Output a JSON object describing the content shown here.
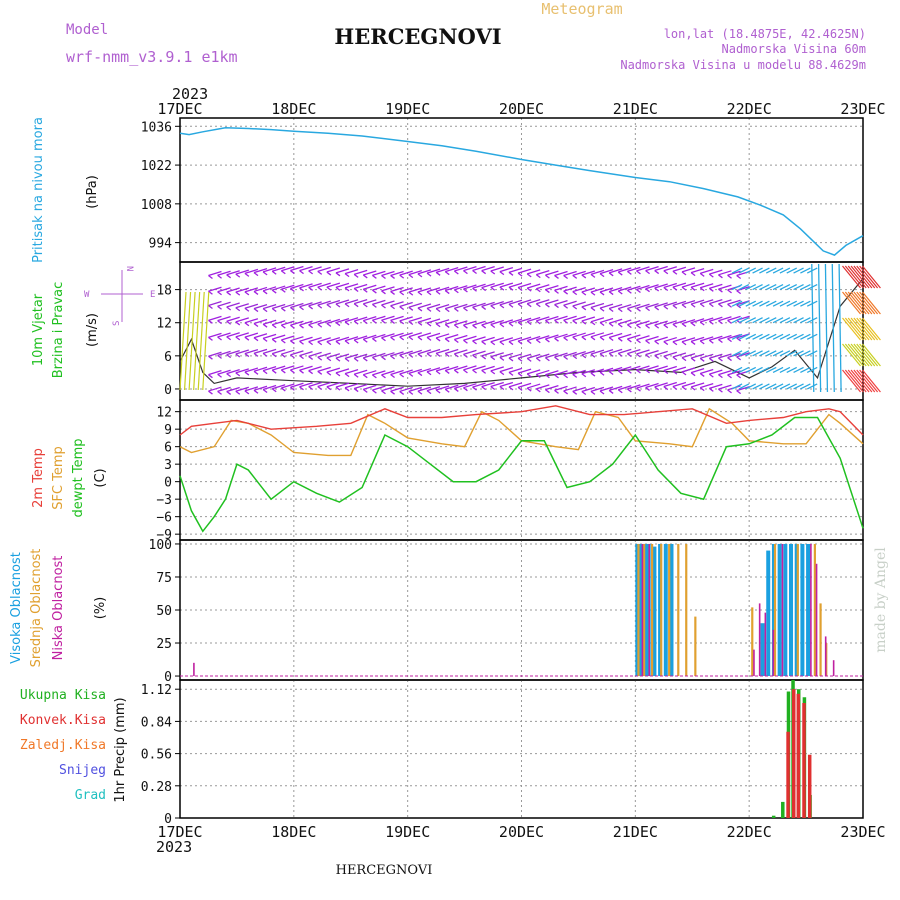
{
  "header": {
    "model_label": "Model",
    "model_name": "wrf-nmm_v3.9.1 e1km",
    "station": "HERCEGNOVI",
    "meteogram_label": "Meteogram",
    "lonlat": "lon,lat (18.4875E, 42.4625N)",
    "elevation": "Nadmorska Visina 60m",
    "model_elevation": "Nadmorska Visina u modelu 88.4629m"
  },
  "footer": {
    "station": "HERCEGNOVI",
    "credit": "made by Angel"
  },
  "time_axis": {
    "year": "2023",
    "labels": [
      "17DEC",
      "18DEC",
      "19DEC",
      "20DEC",
      "21DEC",
      "22DEC",
      "23DEC"
    ]
  },
  "colors": {
    "pressure": "#29a8e0",
    "temp2m": "#e8403a",
    "sfc_temp": "#e0a030",
    "dewpt": "#20c020",
    "high_cloud": "#1aa0e0",
    "mid_cloud": "#e0a030",
    "low_cloud": "#c020a0",
    "total_precip": "#20b020",
    "conv_precip": "#e03030",
    "freezing": "#f07828",
    "snow": "#5050e0",
    "hail": "#20c0c0",
    "wind": "#a020e0",
    "label_purple": "#b060d0",
    "label_orange": "#e8c070"
  },
  "chart_data": [
    {
      "type": "line",
      "ylabel_text": "Pritisak na nivou mora",
      "units": "(hPa)",
      "ylim": [
        987,
        1039
      ],
      "yticks": [
        994,
        1008,
        1022,
        1036
      ],
      "grid": true,
      "series": [
        {
          "name": "Pritisak na nivou mora",
          "x": [
            0,
            0.08,
            0.2,
            0.4,
            0.6,
            0.8,
            1.0,
            1.3,
            1.6,
            2.0,
            2.3,
            2.6,
            3.0,
            3.3,
            3.6,
            4.0,
            4.3,
            4.6,
            4.9,
            5.1,
            5.3,
            5.45,
            5.55,
            5.65,
            5.75,
            5.85,
            6.0
          ],
          "values": [
            1033.5,
            1033.0,
            1034,
            1035.5,
            1035.2,
            1034.8,
            1034.2,
            1033.5,
            1032.5,
            1030.5,
            1029,
            1027,
            1024,
            1022,
            1020,
            1017.5,
            1016,
            1013.5,
            1010.5,
            1007.5,
            1004,
            999,
            995,
            991,
            989.5,
            993,
            996.5
          ]
        }
      ]
    },
    {
      "type": "line",
      "ylabel_text": [
        "10m Vjetar",
        "Brzina i Pravac"
      ],
      "units": "(m/s)",
      "ylim": [
        -2,
        23
      ],
      "yticks": [
        0,
        6,
        12,
        18
      ],
      "grid": true,
      "compass": {
        "n": "N",
        "e": "E",
        "w": "W",
        "s": "S"
      },
      "series": [
        {
          "name": "10m Vjetar",
          "x": [
            0,
            0.1,
            0.2,
            0.3,
            0.5,
            1.0,
            1.5,
            2.0,
            2.5,
            3.0,
            3.5,
            4.0,
            4.4,
            4.7,
            5.0,
            5.2,
            5.4,
            5.6,
            5.8,
            6.0
          ],
          "values": [
            5,
            9,
            3,
            1,
            2,
            1.5,
            1,
            0.5,
            1,
            2,
            3,
            3.5,
            3,
            5,
            2,
            4,
            7,
            2,
            15,
            20
          ]
        }
      ]
    },
    {
      "type": "line",
      "ylabel_text": [
        "2m Temp",
        "SFC Temp",
        "dewpt Temp"
      ],
      "units": "(C)",
      "ylim": [
        -10,
        14
      ],
      "yticks": [
        -9,
        -6,
        -3,
        0,
        3,
        6,
        9,
        12
      ],
      "grid": true,
      "series": [
        {
          "name": "2m Temp",
          "x": [
            0,
            0.1,
            0.3,
            0.5,
            0.8,
            1.2,
            1.5,
            1.8,
            2.0,
            2.3,
            2.6,
            3.0,
            3.3,
            3.6,
            3.9,
            4.2,
            4.5,
            4.8,
            5.0,
            5.3,
            5.5,
            5.7,
            5.8,
            6.0
          ],
          "values": [
            8,
            9.5,
            10,
            10.5,
            9,
            9.5,
            10,
            12.5,
            11,
            11,
            11.5,
            12,
            13,
            11.5,
            11.5,
            12,
            12.5,
            10,
            10.5,
            11,
            12,
            12.5,
            12,
            8
          ]
        },
        {
          "name": "SFC Temp",
          "x": [
            0,
            0.1,
            0.3,
            0.45,
            0.6,
            0.8,
            1.0,
            1.3,
            1.5,
            1.65,
            1.8,
            2.0,
            2.3,
            2.5,
            2.65,
            2.8,
            3.0,
            3.3,
            3.5,
            3.65,
            3.85,
            4.0,
            4.3,
            4.5,
            4.65,
            4.85,
            5.0,
            5.3,
            5.5,
            5.7,
            5.8,
            6.0
          ],
          "values": [
            6,
            5,
            6,
            10.5,
            10,
            8,
            5,
            4.5,
            4.5,
            11.5,
            10,
            7.5,
            6.5,
            6,
            12,
            10.5,
            7,
            6,
            5.5,
            12,
            11,
            7,
            6.5,
            6,
            12.5,
            10,
            7,
            6.5,
            6.5,
            11.5,
            10,
            6.5
          ]
        },
        {
          "name": "dewpt Temp",
          "x": [
            0,
            0.1,
            0.2,
            0.3,
            0.4,
            0.5,
            0.6,
            0.8,
            1.0,
            1.2,
            1.4,
            1.6,
            1.8,
            2.0,
            2.2,
            2.4,
            2.6,
            2.8,
            3.0,
            3.2,
            3.4,
            3.6,
            3.8,
            4.0,
            4.2,
            4.4,
            4.6,
            4.8,
            5.0,
            5.2,
            5.4,
            5.6,
            5.8,
            6.0
          ],
          "values": [
            1,
            -5,
            -8.5,
            -6,
            -3,
            3,
            2,
            -3,
            0,
            -2,
            -3.5,
            -1,
            8,
            6,
            3,
            0,
            0,
            2,
            7,
            7,
            -1,
            0,
            3,
            8,
            2,
            -2,
            -3,
            6,
            6.5,
            8,
            11,
            11,
            4,
            -8
          ]
        }
      ]
    },
    {
      "type": "bar",
      "ylabel_text": [
        "Visoka Oblacnost",
        "Srednja Oblacnost",
        "Niska Oblacnost"
      ],
      "units": "(%)",
      "ylim": [
        -3,
        103
      ],
      "yticks": [
        0,
        25,
        50,
        75,
        100
      ],
      "grid": true,
      "series": [
        {
          "name": "Visoka Oblacnost",
          "x": [
            4.0,
            4.03,
            4.07,
            4.1,
            4.15,
            4.2,
            4.25,
            4.3,
            5.1,
            5.15,
            5.2,
            5.25,
            5.3,
            5.35,
            5.4,
            5.45,
            5.5
          ],
          "values": [
            100,
            100,
            100,
            100,
            98,
            100,
            100,
            100,
            40,
            95,
            100,
            100,
            100,
            100,
            100,
            100,
            100
          ]
        },
        {
          "name": "Srednja Oblacnost",
          "x": [
            4.0,
            4.05,
            4.12,
            4.2,
            4.27,
            4.35,
            4.42,
            4.5,
            5.0,
            5.2,
            5.4,
            5.55,
            5.6,
            5.65
          ],
          "values": [
            100,
            100,
            100,
            100,
            100,
            100,
            100,
            45,
            52,
            100,
            100,
            100,
            55,
            25
          ]
        },
        {
          "name": "Niska Oblacnost",
          "x": [
            0.08,
            4.02,
            4.08,
            5.0,
            5.05,
            5.1,
            5.17,
            5.25,
            5.5,
            5.55,
            5.63,
            5.7
          ],
          "values": [
            10,
            100,
            100,
            20,
            55,
            48,
            35,
            100,
            100,
            85,
            30,
            12
          ]
        }
      ]
    },
    {
      "type": "bar",
      "ylabel_text": [
        "Ukupna Kisa",
        "Konvek.Kisa",
        "Zaledj.Kisa",
        "Snijeg",
        "Grad"
      ],
      "units": "1hr Precip (mm)",
      "ylim": [
        0,
        1.2
      ],
      "yticks": [
        0,
        0.28,
        0.56,
        0.84,
        1.12
      ],
      "grid": true,
      "series": [
        {
          "name": "Ukupna Kisa",
          "x": [
            5.2,
            5.28,
            5.33,
            5.37,
            5.42,
            5.47,
            5.52
          ],
          "values": [
            0.02,
            0.14,
            1.1,
            1.2,
            1.12,
            1.05,
            0.2
          ]
        },
        {
          "name": "Konvek.Kisa",
          "x": [
            5.3,
            5.35,
            5.39,
            5.44,
            5.49
          ],
          "values": [
            0.75,
            1.12,
            1.08,
            1.0,
            0.55
          ]
        }
      ]
    }
  ]
}
